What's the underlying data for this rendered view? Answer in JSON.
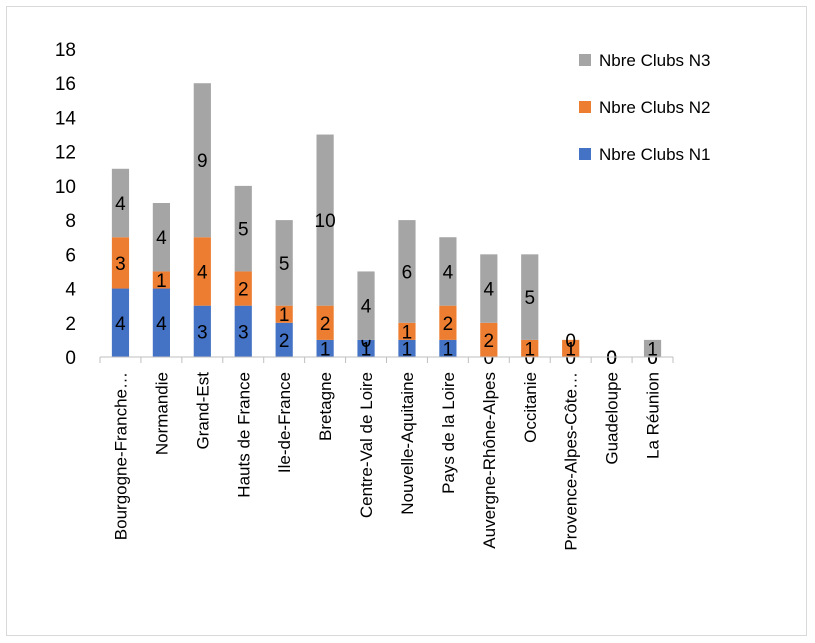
{
  "chart_data": {
    "type": "bar",
    "stacked": true,
    "categories": [
      "Bourgogne-Franche…",
      "Normandie",
      "Grand-Est",
      "Hauts de France",
      "Ile-de-France",
      "Bretagne",
      "Centre-Val de Loire",
      "Nouvelle-Aquitaine",
      "Pays de la Loire",
      "Auvergne-Rhône-Alpes",
      "Occitanie",
      "Provence-Alpes-Côte…",
      "Guadeloupe",
      "La Réunion"
    ],
    "series": [
      {
        "name": "Nbre Clubs N1",
        "color": "#4472C4",
        "values": [
          4,
          4,
          3,
          3,
          2,
          1,
          1,
          1,
          1,
          0,
          0,
          0,
          0,
          0
        ]
      },
      {
        "name": "Nbre Clubs N2",
        "color": "#ED7D31",
        "values": [
          3,
          1,
          4,
          2,
          1,
          2,
          0,
          1,
          2,
          2,
          1,
          1,
          0,
          0
        ]
      },
      {
        "name": "Nbre Clubs N3",
        "color": "#A5A5A5",
        "values": [
          4,
          4,
          9,
          5,
          5,
          10,
          4,
          6,
          4,
          4,
          5,
          0,
          0,
          1
        ]
      }
    ],
    "y_ticks": [
      "0",
      "2",
      "4",
      "6",
      "8",
      "10",
      "12",
      "14",
      "16",
      "18"
    ],
    "ylim": [
      0,
      18
    ],
    "title": "",
    "xlabel": "",
    "ylabel": "",
    "grid": false,
    "legend_position": "right"
  }
}
